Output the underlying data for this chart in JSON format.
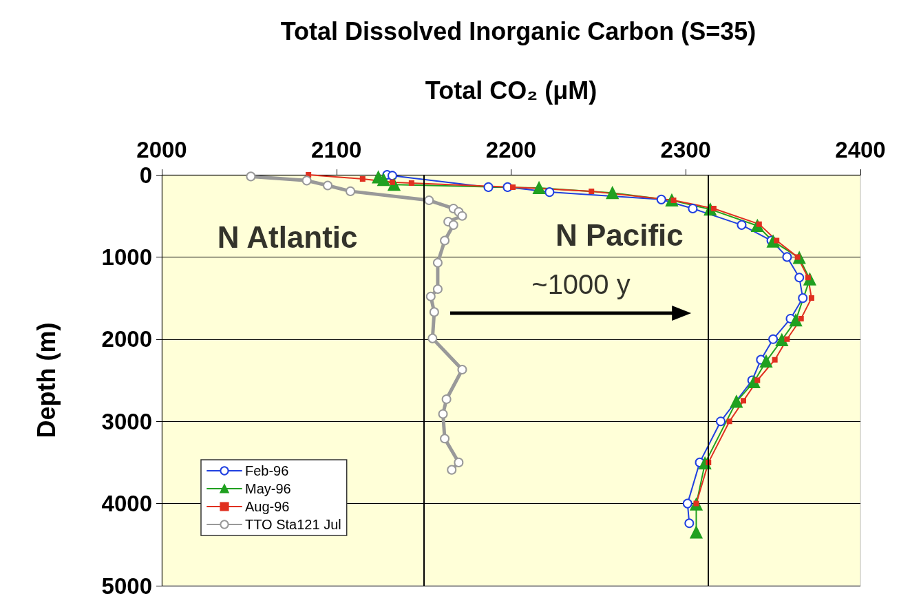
{
  "chart_data": {
    "type": "line",
    "title": "Total Dissolved Inorganic Carbon (S=35)",
    "xlabel": "Total CO₂ (μM)",
    "ylabel": "Depth (m)",
    "xlim": [
      2000,
      2400
    ],
    "xticks": [
      2000,
      2100,
      2200,
      2300,
      2400
    ],
    "ylim": [
      5000,
      0
    ],
    "yticks": [
      0,
      1000,
      2000,
      3000,
      4000,
      5000
    ],
    "grid": "y",
    "legend": "bottom left",
    "line_style": "solid",
    "annotations": [
      "N Atlantic",
      "N Pacific",
      "~1000 y"
    ],
    "ref_lines": [
      {
        "axis": "x",
        "value": 2150,
        "color": "#000000"
      },
      {
        "axis": "x",
        "value": 2313,
        "color": "#000000"
      }
    ],
    "series": [
      {
        "name": "Feb-96",
        "color": "#2040e0",
        "marker": "circle",
        "x": [
          2129,
          2132,
          2187,
          2198,
          2222,
          2286,
          2304,
          2332,
          2349,
          2358,
          2365,
          2367,
          2360,
          2350,
          2343,
          2338,
          2320,
          2308,
          2301,
          2302
        ],
        "values": [
          0,
          10,
          150,
          150,
          210,
          300,
          410,
          610,
          800,
          1000,
          1250,
          1500,
          1750,
          2000,
          2250,
          2500,
          3000,
          3500,
          4000,
          4240
        ]
      },
      {
        "name": "May-96",
        "color": "#20a020",
        "marker": "triangle",
        "x": [
          2124,
          2127,
          2133,
          2216,
          2258,
          2292,
          2314,
          2341,
          2350,
          2365,
          2371,
          2363,
          2355,
          2346,
          2339,
          2329,
          2311,
          2306,
          2306
        ],
        "values": [
          30,
          60,
          120,
          160,
          220,
          310,
          420,
          620,
          810,
          1010,
          1270,
          1770,
          2010,
          2270,
          2520,
          2760,
          3510,
          4010,
          4350
        ]
      },
      {
        "name": "Aug-96",
        "color": "#e03020",
        "marker": "square",
        "x": [
          2084,
          2115,
          2132,
          2143,
          2201,
          2246,
          2293,
          2316,
          2342,
          2352,
          2364,
          2370,
          2372,
          2366,
          2358,
          2351,
          2341,
          2333,
          2325,
          2313,
          2306
        ],
        "values": [
          0,
          50,
          90,
          100,
          150,
          200,
          310,
          410,
          600,
          800,
          1000,
          1250,
          1500,
          1750,
          2000,
          2250,
          2500,
          2750,
          3000,
          3500,
          4000
        ]
      },
      {
        "name": "TTO Sta121 Jul",
        "color": "#999999",
        "marker": "circle",
        "x": [
          2051,
          2083,
          2095,
          2108,
          2153,
          2167,
          2170,
          2172,
          2164,
          2167,
          2162,
          2158,
          2158,
          2154,
          2156,
          2155,
          2172,
          2163,
          2161,
          2162,
          2170,
          2166
        ],
        "values": [
          20,
          70,
          130,
          200,
          310,
          410,
          450,
          500,
          570,
          610,
          800,
          1070,
          1390,
          1480,
          1670,
          1990,
          2370,
          2730,
          2910,
          3210,
          3500,
          3590
        ]
      }
    ]
  }
}
